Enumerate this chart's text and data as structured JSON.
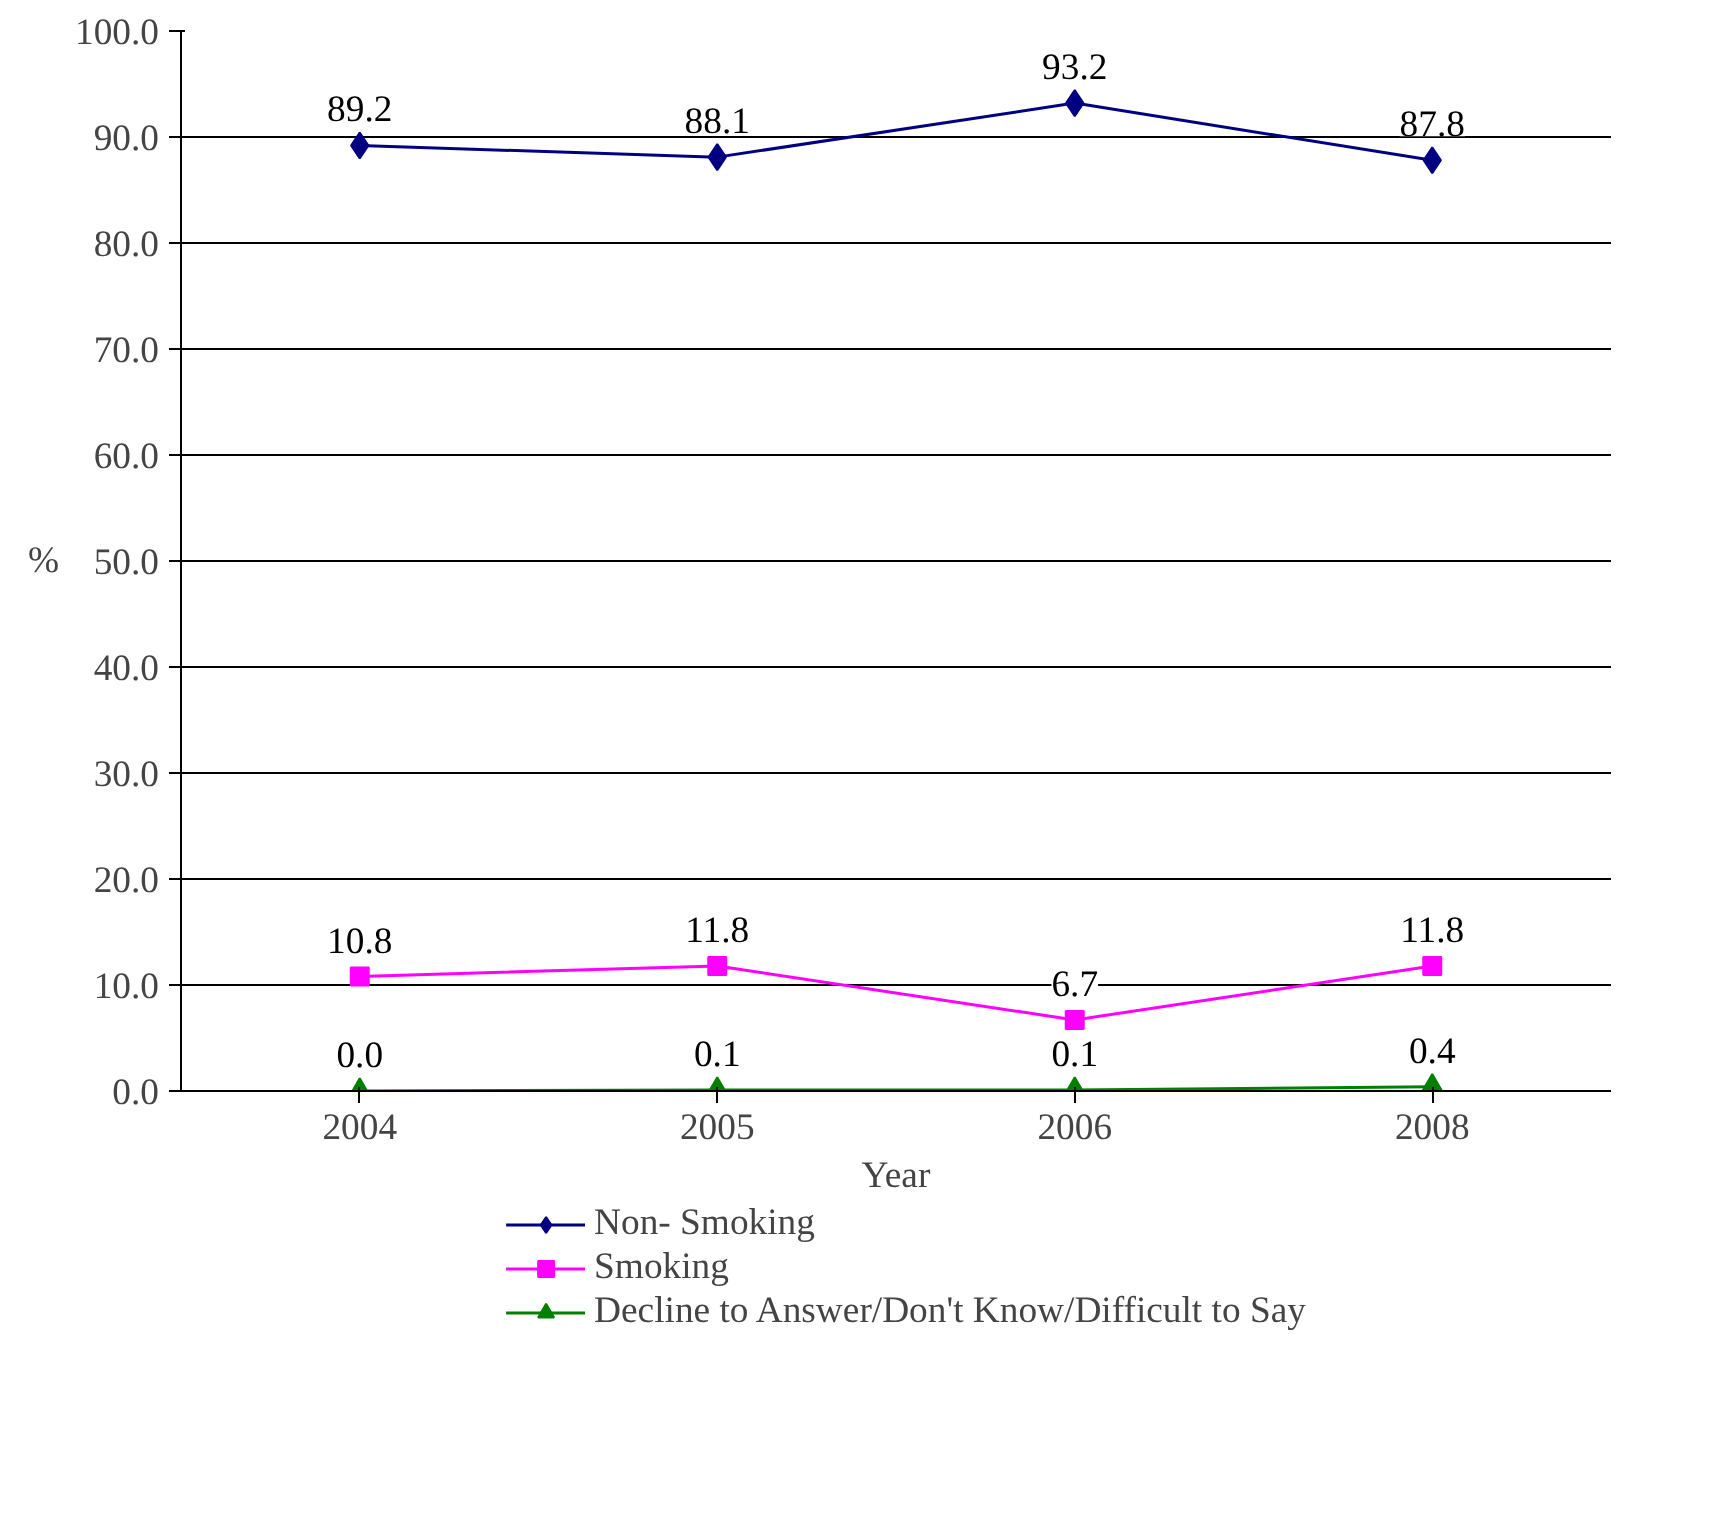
{
  "chart_data": {
    "type": "line",
    "xlabel": "Year",
    "ylabel": "%",
    "categories": [
      "2004",
      "2005",
      "2006",
      "2008"
    ],
    "series": [
      {
        "name": "Non- Smoking",
        "color": "#000080",
        "marker": "diamond",
        "values": [
          89.2,
          88.1,
          93.2,
          87.8
        ],
        "value_labels": [
          "89.2",
          "88.1",
          "93.2",
          "87.8"
        ]
      },
      {
        "name": "Smoking",
        "color": "#ff00ff",
        "marker": "square",
        "values": [
          10.8,
          11.8,
          6.7,
          11.8
        ],
        "value_labels": [
          "10.8",
          "11.8",
          "6.7",
          "11.8"
        ]
      },
      {
        "name": "Decline to Answer/Don't Know/Difficult to Say",
        "color": "#008000",
        "marker": "triangle",
        "values": [
          0.0,
          0.1,
          0.1,
          0.4
        ],
        "value_labels": [
          "0.0",
          "0.1",
          "0.1",
          "0.4"
        ]
      }
    ],
    "ylim": [
      0,
      100
    ],
    "yticks": [
      {
        "value": 0,
        "label": "0.0"
      },
      {
        "value": 10,
        "label": "10.0"
      },
      {
        "value": 20,
        "label": "20.0"
      },
      {
        "value": 30,
        "label": "30.0"
      },
      {
        "value": 40,
        "label": "40.0"
      },
      {
        "value": 50,
        "label": "50.0"
      },
      {
        "value": 60,
        "label": "60.0"
      },
      {
        "value": 70,
        "label": "70.0"
      },
      {
        "value": 80,
        "label": "80.0"
      },
      {
        "value": 90,
        "label": "90.0"
      },
      {
        "value": 100,
        "label": "100.0"
      }
    ],
    "grid": "y",
    "legend": "bottom",
    "line_style": "solid"
  }
}
